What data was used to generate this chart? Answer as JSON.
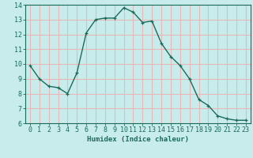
{
  "x": [
    0,
    1,
    2,
    3,
    4,
    5,
    6,
    7,
    8,
    9,
    10,
    11,
    12,
    13,
    14,
    15,
    16,
    17,
    18,
    19,
    20,
    21,
    22,
    23
  ],
  "y": [
    9.9,
    9.0,
    8.5,
    8.4,
    8.0,
    9.4,
    12.1,
    13.0,
    13.1,
    13.1,
    13.8,
    13.5,
    12.8,
    12.9,
    11.4,
    10.5,
    9.9,
    9.0,
    7.6,
    7.2,
    6.5,
    6.3,
    6.2,
    6.2
  ],
  "line_color": "#1a6b5a",
  "marker": "+",
  "bg_color": "#c8ecec",
  "grid_color": "#e8b8b8",
  "xlabel": "Humidex (Indice chaleur)",
  "xlim": [
    -0.5,
    23.5
  ],
  "ylim": [
    6,
    14
  ],
  "yticks": [
    6,
    7,
    8,
    9,
    10,
    11,
    12,
    13,
    14
  ],
  "xticks": [
    0,
    1,
    2,
    3,
    4,
    5,
    6,
    7,
    8,
    9,
    10,
    11,
    12,
    13,
    14,
    15,
    16,
    17,
    18,
    19,
    20,
    21,
    22,
    23
  ],
  "label_fontsize": 6.5,
  "tick_fontsize": 6
}
